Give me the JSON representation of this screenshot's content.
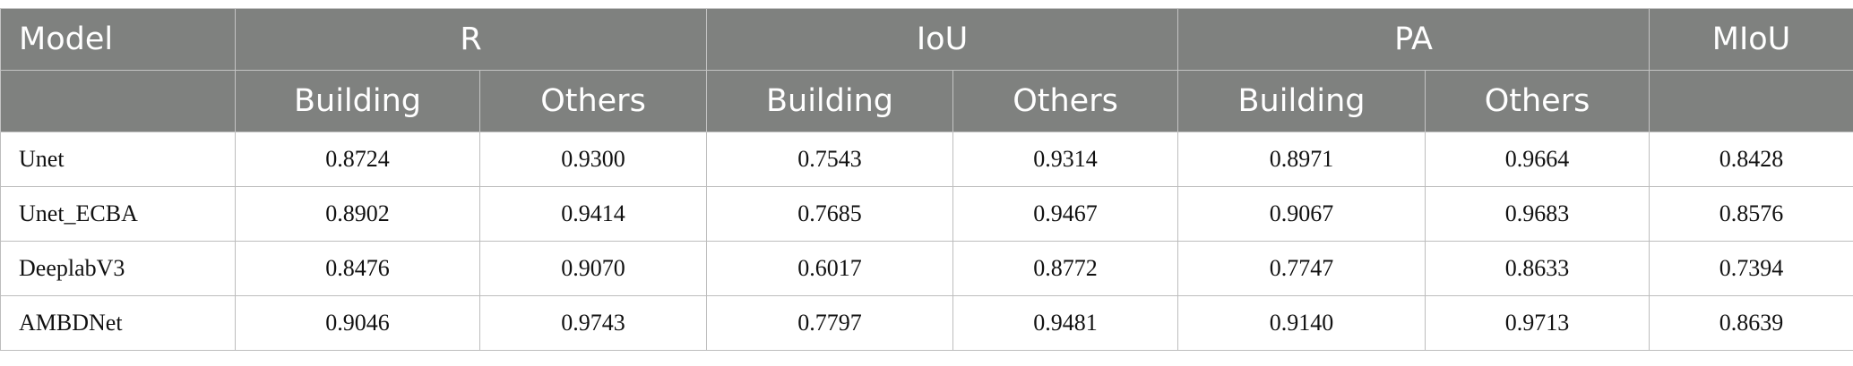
{
  "headers": {
    "model": "Model",
    "r": "R",
    "iou": "IoU",
    "pa": "PA",
    "miou": "MIoU",
    "building": "Building",
    "others": "Others"
  },
  "rows": [
    {
      "model": "Unet",
      "r_building": "0.8724",
      "r_others": "0.9300",
      "iou_building": "0.7543",
      "iou_others": "0.9314",
      "pa_building": "0.8971",
      "pa_others": "0.9664",
      "miou": "0.8428"
    },
    {
      "model": "Unet_ECBA",
      "r_building": "0.8902",
      "r_others": "0.9414",
      "iou_building": "0.7685",
      "iou_others": "0.9467",
      "pa_building": "0.9067",
      "pa_others": "0.9683",
      "miou": "0.8576"
    },
    {
      "model": "DeeplabV3",
      "r_building": "0.8476",
      "r_others": "0.9070",
      "iou_building": "0.6017",
      "iou_others": "0.8772",
      "pa_building": "0.7747",
      "pa_others": "0.8633",
      "miou": "0.7394"
    },
    {
      "model": "AMBDNet",
      "r_building": "0.9046",
      "r_others": "0.9743",
      "iou_building": "0.7797",
      "iou_others": "0.9481",
      "pa_building": "0.9140",
      "pa_others": "0.9713",
      "miou": "0.8639"
    }
  ]
}
